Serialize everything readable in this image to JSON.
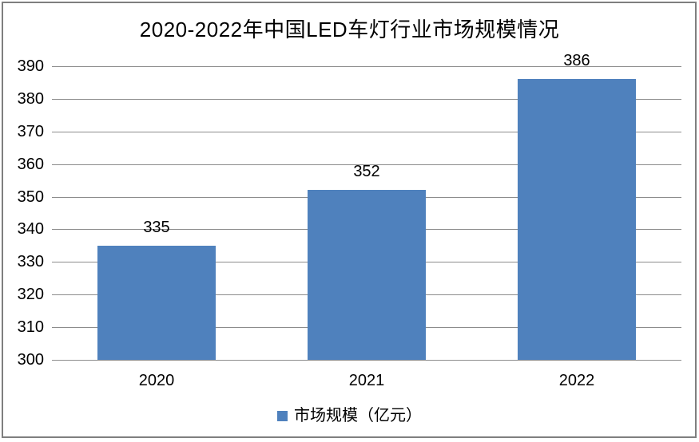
{
  "chart_data": {
    "type": "bar",
    "title": "2020-2022年中国LED车灯行业市场规模情况",
    "categories": [
      "2020",
      "2021",
      "2022"
    ],
    "series": [
      {
        "name": "市场规模（亿元）",
        "values": [
          335,
          352,
          386
        ]
      }
    ],
    "data_labels": [
      "335",
      "352",
      "386"
    ],
    "ytick_labels": [
      "300",
      "310",
      "320",
      "330",
      "340",
      "350",
      "360",
      "370",
      "380",
      "390"
    ],
    "ylim": [
      300,
      390
    ],
    "ytick_step": 10,
    "grid": true,
    "legend_position": "bottom",
    "colors": {
      "bar": "#4F81BD",
      "gridline": "#8C8C8C",
      "frame": "#7F7F7F",
      "text": "#000000",
      "background": "#FFFFFF"
    }
  }
}
